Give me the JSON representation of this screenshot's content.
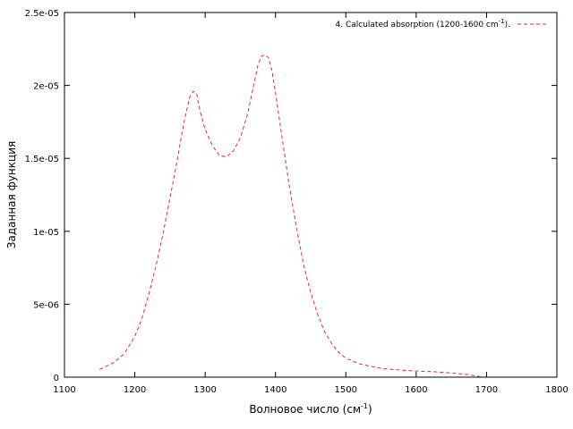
{
  "chart_data": {
    "type": "line",
    "title": "",
    "xlabel": "Волновое число (см",
    "xlabel_sup": "-1",
    "xlabel_suffix": ")",
    "ylabel": "Заданная функция",
    "xlim": [
      1100,
      1800
    ],
    "ylim": [
      0,
      2.5e-05
    ],
    "xticks": [
      1100,
      1200,
      1300,
      1400,
      1500,
      1600,
      1700,
      1800
    ],
    "xtick_labels": [
      "1100",
      "1200",
      "1300",
      "1400",
      "1500",
      "1600",
      "1700",
      "1800"
    ],
    "yticks": [
      0,
      5e-06,
      1e-05,
      1.5e-05,
      2e-05,
      2.5e-05
    ],
    "ytick_labels": [
      "0",
      "5e-06",
      "1e-05",
      "1.5e-05",
      "2e-05",
      "2.5e-05"
    ],
    "grid": false,
    "legend_position": "top-right",
    "series": [
      {
        "name": "4. Calculated absorption (1200-1600 cm",
        "name_sup": "-1",
        "name_suffix": ").",
        "color": "#e8262a",
        "dash": "dashed",
        "x": [
          1150,
          1170,
          1185,
          1200,
          1210,
          1220,
          1230,
          1240,
          1250,
          1260,
          1270,
          1278,
          1283,
          1288,
          1293,
          1300,
          1310,
          1320,
          1330,
          1340,
          1350,
          1360,
          1368,
          1375,
          1380,
          1385,
          1390,
          1395,
          1400,
          1410,
          1420,
          1430,
          1440,
          1450,
          1460,
          1470,
          1480,
          1490,
          1500,
          1520,
          1550,
          1580,
          1600,
          1630,
          1650,
          1670,
          1690,
          1695
        ],
        "y": [
          5.2e-07,
          1e-06,
          1.6e-06,
          2.8e-06,
          4e-06,
          5.7e-06,
          7.6e-06,
          9.8e-06,
          1.23e-05,
          1.48e-05,
          1.75e-05,
          1.92e-05,
          1.96e-05,
          1.94e-05,
          1.82e-05,
          1.7e-05,
          1.59e-05,
          1.52e-05,
          1.51e-05,
          1.55e-05,
          1.64e-05,
          1.8e-05,
          1.98e-05,
          2.14e-05,
          2.2e-05,
          2.21e-05,
          2.19e-05,
          2.1e-05,
          1.95e-05,
          1.62e-05,
          1.3e-05,
          1.02e-05,
          7.7e-06,
          5.8e-06,
          4.3e-06,
          3.1e-06,
          2.3e-06,
          1.7e-06,
          1.3e-06,
          9e-07,
          6e-07,
          4.8e-07,
          4.2e-07,
          3.6e-07,
          2.8e-07,
          2e-07,
          5e-08,
          0.0
        ]
      }
    ]
  }
}
